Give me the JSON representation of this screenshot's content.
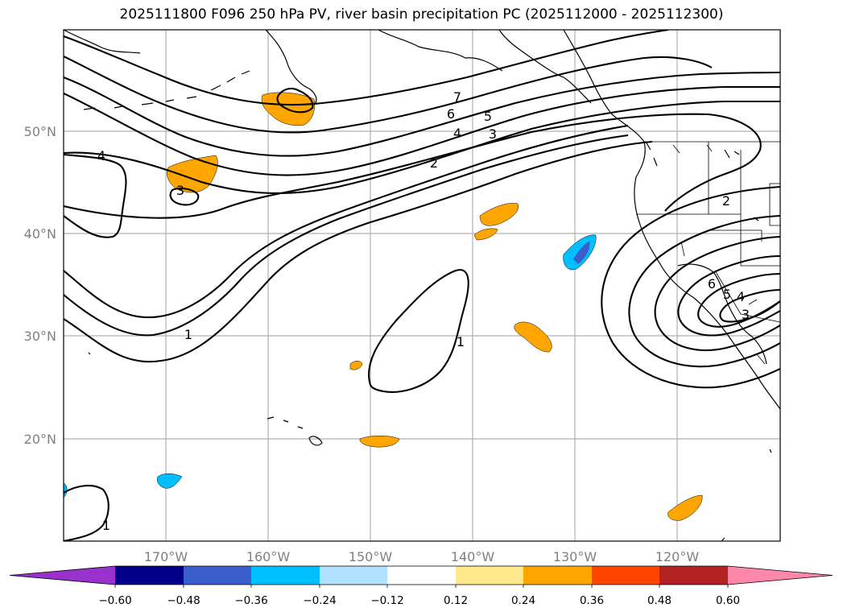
{
  "title": "2025111800 F096 250 hPa PV, river basin precipitation PC (2025112000 - 2025112300)",
  "map": {
    "lat_labels": [
      "50°N",
      "40°N",
      "30°N",
      "20°N"
    ],
    "lon_labels": [
      "170°W",
      "160°W",
      "150°W",
      "140°W",
      "130°W",
      "120°W"
    ],
    "contour_labels": [
      "7",
      "6",
      "5",
      "4",
      "3",
      "2",
      "4",
      "3",
      "1",
      "1",
      "1",
      "2",
      "6",
      "5",
      "4",
      "3"
    ]
  },
  "colorbar": {
    "ticks": [
      "−0.60",
      "−0.48",
      "−0.36",
      "−0.24",
      "−0.12",
      "0.12",
      "0.24",
      "0.36",
      "0.48",
      "0.60"
    ],
    "colors": [
      "#9932cc",
      "#00008b",
      "#3a5fcd",
      "#00bfff",
      "#b0e2ff",
      "#ffffff",
      "#ffe88a",
      "#ffa500",
      "#ff4500",
      "#b22222",
      "#ff88aa",
      "#ff88aa"
    ]
  },
  "chart_data": {
    "type": "map-contour",
    "title": "2025111800 F096 250 hPa PV, river basin precipitation PC (2025112000 - 2025112300)",
    "contour_field": "250 hPa PV",
    "contour_levels": [
      1,
      2,
      3,
      4,
      5,
      6,
      7
    ],
    "shaded_field": "river basin precipitation PC",
    "colorbar_bounds": [
      -0.6,
      -0.48,
      -0.36,
      -0.24,
      -0.12,
      0.12,
      0.24,
      0.36,
      0.48,
      0.6
    ],
    "lat_range": [
      10,
      60
    ],
    "lon_range": [
      -180,
      -110
    ]
  }
}
